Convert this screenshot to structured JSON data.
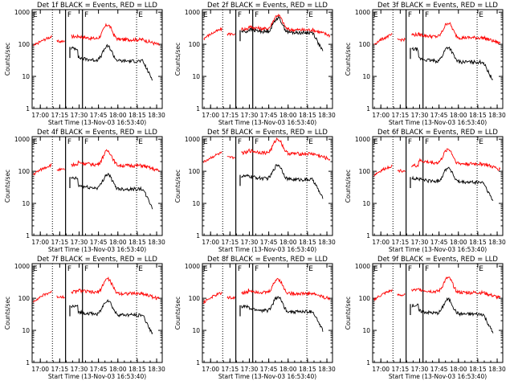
{
  "chart_data": [
    {
      "type": "line",
      "title": "Det 1f BLACK = Events, RED = LLD",
      "xlabel": "Start Time (13-Nov-03 16:53:40)",
      "ylabel": "Counts/sec",
      "x_ticks": [
        "17:00",
        "17:15",
        "17:30",
        "17:45",
        "18:00",
        "18:15",
        "18:30"
      ],
      "y_ticks": [
        "1",
        "10",
        "100",
        "1000"
      ],
      "y_scale": "log",
      "ylim": [
        1,
        1200
      ],
      "markers": [
        "E",
        "F",
        "F",
        "E"
      ],
      "series": [
        {
          "color": "#ff0000",
          "level": 140,
          "start": 175
        },
        {
          "color": "#000000",
          "level": 30,
          "start": 75
        }
      ]
    },
    {
      "type": "line",
      "title": "Det 2f BLACK = Events, RED = LLD",
      "xlabel": "Start Time (13-Nov-03 16:53:40)",
      "ylabel": "Counts/sec",
      "x_ticks": [
        "17:00",
        "17:15",
        "17:30",
        "17:45",
        "18:00",
        "18:15",
        "18:30"
      ],
      "y_ticks": [
        "1",
        "10",
        "100",
        "1000"
      ],
      "y_scale": "log",
      "ylim": [
        1,
        1200
      ],
      "markers": [
        "E",
        "F",
        "F",
        "E"
      ],
      "series": [
        {
          "color": "#ff0000",
          "level": 280,
          "start": 300
        },
        {
          "color": "#000000",
          "level": 230,
          "start": 250
        }
      ]
    },
    {
      "type": "line",
      "title": "Det 3f BLACK = Events, RED = LLD",
      "xlabel": "Start Time (13-Nov-03 16:53:40)",
      "ylabel": "Counts/sec",
      "x_ticks": [
        "17:00",
        "17:15",
        "17:30",
        "17:45",
        "18:00",
        "18:15",
        "18:30"
      ],
      "y_ticks": [
        "1",
        "10",
        "100",
        "1000"
      ],
      "y_scale": "log",
      "ylim": [
        1,
        1200
      ],
      "markers": [
        "E",
        "F",
        "F",
        "E"
      ],
      "series": [
        {
          "color": "#ff0000",
          "level": 160,
          "start": 200
        },
        {
          "color": "#000000",
          "level": 28,
          "start": 70
        }
      ]
    },
    {
      "type": "line",
      "title": "Det 4f BLACK = Events, RED = LLD",
      "xlabel": "Start Time (13-Nov-03 16:53:40)",
      "ylabel": "Counts/sec",
      "x_ticks": [
        "17:00",
        "17:15",
        "17:30",
        "17:45",
        "18:00",
        "18:15",
        "18:30"
      ],
      "y_ticks": [
        "1",
        "10",
        "100",
        "1000"
      ],
      "y_scale": "log",
      "ylim": [
        1,
        1200
      ],
      "markers": [
        "E",
        "F",
        "F",
        "E"
      ],
      "series": [
        {
          "color": "#ff0000",
          "level": 150,
          "start": 160
        },
        {
          "color": "#000000",
          "level": 28,
          "start": 60
        }
      ]
    },
    {
      "type": "line",
      "title": "Det 5f BLACK = Events, RED = LLD",
      "xlabel": "Start Time (13-Nov-03 16:53:40)",
      "ylabel": "Counts/sec",
      "x_ticks": [
        "17:00",
        "17:15",
        "17:30",
        "17:45",
        "18:00",
        "18:15",
        "18:30"
      ],
      "y_ticks": [
        "1",
        "10",
        "100",
        "1000"
      ],
      "y_scale": "log",
      "ylim": [
        1,
        1200
      ],
      "markers": [
        "E",
        "F",
        "F",
        "E"
      ],
      "series": [
        {
          "color": "#ff0000",
          "level": 350,
          "start": 380
        },
        {
          "color": "#000000",
          "level": 55,
          "start": 70
        }
      ]
    },
    {
      "type": "line",
      "title": "Det 6f BLACK = Events, RED = LLD",
      "xlabel": "Start Time (13-Nov-03 16:53:40)",
      "ylabel": "Counts/sec",
      "x_ticks": [
        "17:00",
        "17:15",
        "17:30",
        "17:45",
        "18:00",
        "18:15",
        "18:30"
      ],
      "y_ticks": [
        "1",
        "10",
        "100",
        "1000"
      ],
      "y_scale": "log",
      "ylim": [
        1,
        1200
      ],
      "markers": [
        "E",
        "F",
        "F",
        "E"
      ],
      "series": [
        {
          "color": "#ff0000",
          "level": 170,
          "start": 150
        },
        {
          "color": "#000000",
          "level": 45,
          "start": 60
        }
      ]
    },
    {
      "type": "line",
      "title": "Det 7f BLACK = Events, RED = LLD",
      "xlabel": "Start Time (13-Nov-03 16:53:40)",
      "ylabel": "Counts/sec",
      "x_ticks": [
        "17:00",
        "17:15",
        "17:30",
        "17:45",
        "18:00",
        "18:15",
        "18:30"
      ],
      "y_ticks": [
        "1",
        "10",
        "100",
        "1000"
      ],
      "y_scale": "log",
      "ylim": [
        1,
        1200
      ],
      "markers": [
        "E",
        "F",
        "F",
        "E"
      ],
      "series": [
        {
          "color": "#ff0000",
          "level": 140,
          "start": 160
        },
        {
          "color": "#000000",
          "level": 30,
          "start": 55
        }
      ]
    },
    {
      "type": "line",
      "title": "Det 8f BLACK = Events, RED = LLD",
      "xlabel": "Start Time (13-Nov-03 16:53:40)",
      "ylabel": "Counts/sec",
      "x_ticks": [
        "17:00",
        "17:15",
        "17:30",
        "17:45",
        "18:00",
        "18:15",
        "18:30"
      ],
      "y_ticks": [
        "1",
        "10",
        "100",
        "1000"
      ],
      "y_scale": "log",
      "ylim": [
        1,
        1200
      ],
      "markers": [
        "E",
        "F",
        "F",
        "E"
      ],
      "series": [
        {
          "color": "#ff0000",
          "level": 140,
          "start": 150
        },
        {
          "color": "#000000",
          "level": 38,
          "start": 55
        }
      ]
    },
    {
      "type": "line",
      "title": "Det 9f BLACK = Events, RED = LLD",
      "xlabel": "Start Time (13-Nov-03 16:53:40)",
      "ylabel": "Counts/sec",
      "x_ticks": [
        "17:00",
        "17:15",
        "17:30",
        "17:45",
        "18:00",
        "18:15",
        "18:30"
      ],
      "y_ticks": [
        "1",
        "10",
        "100",
        "1000"
      ],
      "y_scale": "log",
      "ylim": [
        1,
        1200
      ],
      "markers": [
        "E",
        "F",
        "F",
        "E"
      ],
      "series": [
        {
          "color": "#ff0000",
          "level": 150,
          "start": 180
        },
        {
          "color": "#000000",
          "level": 32,
          "start": 60
        }
      ]
    }
  ]
}
